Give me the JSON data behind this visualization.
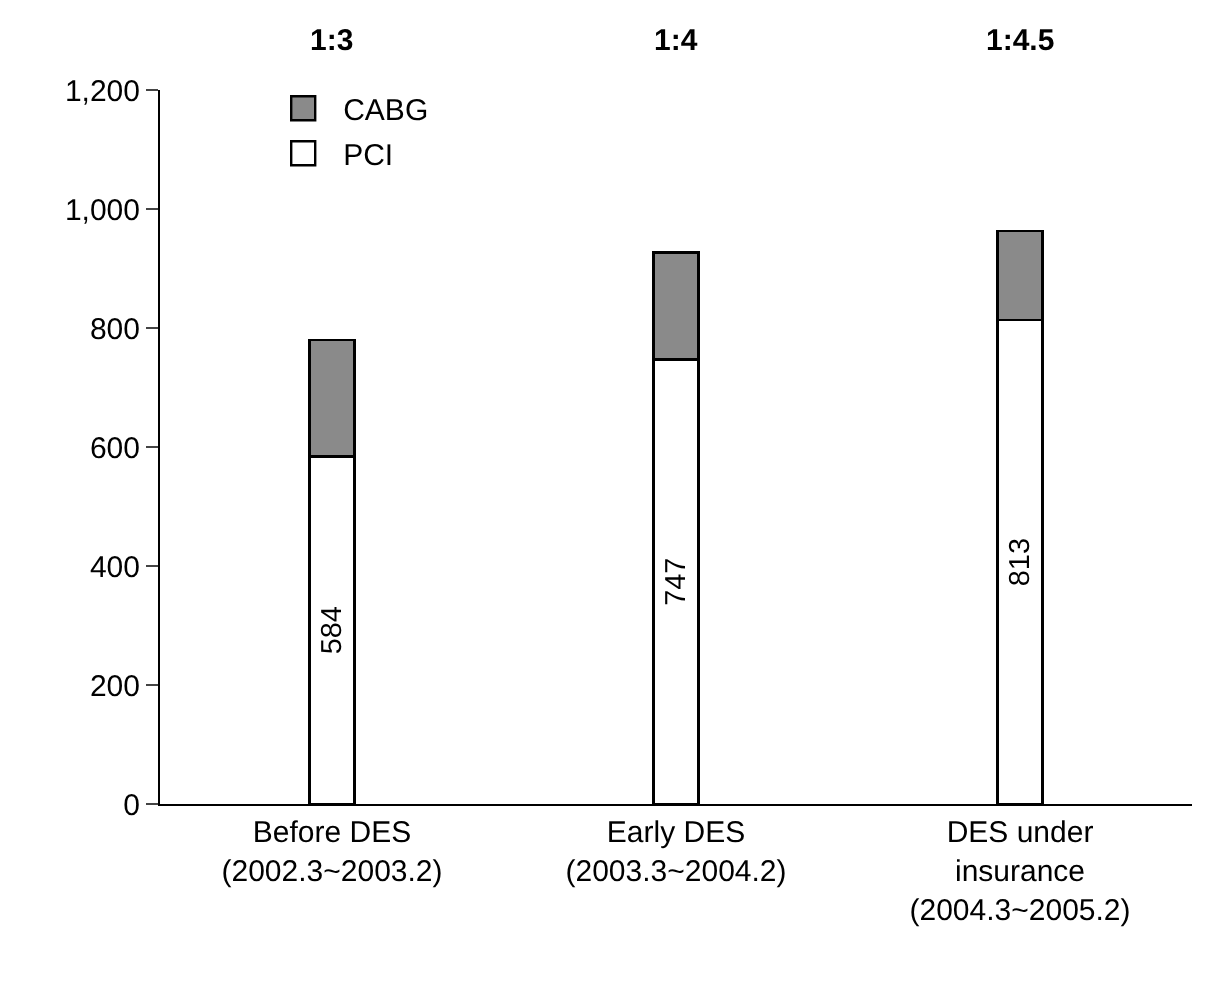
{
  "chart_data": {
    "type": "bar",
    "stacked": true,
    "categories": [
      "Before DES\n(2002.3~2003.2)",
      "Early DES\n(2003.3~2004.2)",
      "DES under\ninsurance\n(2004.3~2005.2)"
    ],
    "series": [
      {
        "name": "PCI",
        "color": "#ffffff",
        "values": [
          584,
          747,
          813
        ],
        "value_labels": [
          "584",
          "747",
          "813"
        ]
      },
      {
        "name": "CABG",
        "color": "#8a8a8a",
        "values": [
          196,
          180,
          150
        ]
      }
    ],
    "annotations": [
      "1:3",
      "1:4",
      "1:4.5"
    ],
    "ylim": [
      0,
      1200
    ],
    "yticks": [
      0,
      200,
      400,
      600,
      800,
      {
        "value": 1000,
        "label": "1,000"
      },
      {
        "value": 1200,
        "label": "1,200"
      }
    ],
    "legend": "top left"
  }
}
